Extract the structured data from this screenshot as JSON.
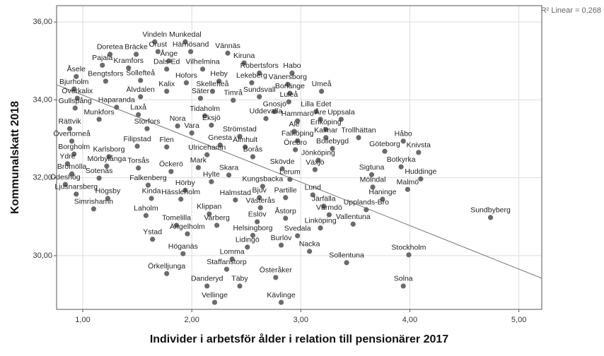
{
  "chart_data": {
    "type": "scatter",
    "xlabel": "Individer i arbetsför ålder i relation till pensionärer 2017",
    "ylabel": "Kommunalskatt 2018",
    "annotation": "R² Linear = 0,268",
    "color": "#6b6b6b",
    "grid": true,
    "xlim": [
      0.76,
      5.21
    ],
    "ylim": [
      28.62,
      36.42
    ],
    "xticks": [
      {
        "value": 1,
        "label": "1,00"
      },
      {
        "value": 2,
        "label": "2,00"
      },
      {
        "value": 3,
        "label": "3,00"
      },
      {
        "value": 4,
        "label": "4,00"
      },
      {
        "value": 5,
        "label": "5,00"
      }
    ],
    "yticks": [
      {
        "value": 30,
        "label": "30,00"
      },
      {
        "value": 32,
        "label": "32,00"
      },
      {
        "value": 34,
        "label": "34,00"
      },
      {
        "value": 36,
        "label": "36,00"
      }
    ],
    "trendline": {
      "x": [
        0.76,
        5.21
      ],
      "y": [
        34.39,
        29.42
      ]
    },
    "labels": [
      "Vindeln",
      "Munkedal",
      "Doretea",
      "Bräcke",
      "Orust",
      "Härnösand",
      "Vännäs",
      "Pajala",
      "Kramfors",
      "Ånge",
      "Kiruna",
      "Dals-Ed",
      "Vilhelmina",
      "Robertsfors",
      "Habo",
      "Åsele",
      "Bengtsfors",
      "Sollefteå",
      "Hofors",
      "Heby",
      "Lekeberg",
      "Vänersborg",
      "Bjurholm",
      "Kalix",
      "Skellefteå",
      "Sundsvall",
      "Borlänge",
      "Umeå",
      "Överkalix",
      "Älvdalen",
      "Säter",
      "Timrå",
      "Luleå",
      "Gullspång",
      "Haparanda",
      "Tidaholm",
      "Gnosjö",
      "Lilla Edet",
      "Munkfors",
      "Laxå",
      "Eksjö",
      "Uddevalla",
      "Hammarö",
      "Åre",
      "Uppsala",
      "Rättvik",
      "Storfors",
      "Nora",
      "Ale",
      "Enköping",
      "Vara",
      "Övertorneå",
      "Filipstad",
      "Flen",
      "Gnesta",
      "Strömstad",
      "Falköping",
      "Kalmar",
      "Trollhättan",
      "Håbo",
      "Älmhult",
      "Örebro",
      "Bollebygd",
      "Borgholm",
      "Karlsborg",
      "Ulricehamn",
      "Borås",
      "Göteborg",
      "Knivsta",
      "Mörbylånga",
      "Torsås",
      "Mark",
      "Jönköping",
      "Botkyrka",
      "Ydre",
      "Bromölla",
      "Öckerö",
      "Skövde",
      "Växjö",
      "Sigtuna",
      "Sotenäs",
      "Skara",
      "Lerum",
      "Huddinge",
      "Ödeshög",
      "Falkenberg",
      "Hylte",
      "Kungsbacka",
      "Ljusnarsberg",
      "Hörby",
      "Mölndal",
      "Malmö",
      "Högsby",
      "Kinda",
      "Hässleholm",
      "Halmstad",
      "Bjuv",
      "Partille",
      "Lund",
      "Haninge",
      "Simrishamn",
      "Järfälla",
      "Upplands-Bro",
      "Klippan",
      "Västerås",
      "Värmdö",
      "Åstorp",
      "Laholm",
      "Tomelilla",
      "Varberg",
      "Eslöv",
      "Vallentuna",
      "Sundbyberg",
      "Ängelholm",
      "Linköping",
      "Helsingborg",
      "Svedala",
      "Ystad",
      "Burlöv",
      "Lidingö",
      "Nacka",
      "Höganäs",
      "Lomma",
      "Sollentuna",
      "Stockholm",
      "Staffanstorp",
      "Örkelljunga",
      "Österåker",
      "Danderyd",
      "Täby",
      "Solna",
      "Vellinge",
      "Kävlinge"
    ],
    "x": [
      1.66,
      1.94,
      1.25,
      1.49,
      1.69,
      1.99,
      2.33,
      1.18,
      1.42,
      1.79,
      2.48,
      1.77,
      2.1,
      2.62,
      2.92,
      0.94,
      1.21,
      1.53,
      1.95,
      2.25,
      2.55,
      2.88,
      0.92,
      1.77,
      2.19,
      2.62,
      2.9,
      3.19,
      0.95,
      1.53,
      2.08,
      2.38,
      2.89,
      0.93,
      1.31,
      2.12,
      2.76,
      3.14,
      1.15,
      1.51,
      2.18,
      2.68,
      2.97,
      3.18,
      3.37,
      0.88,
      1.59,
      1.87,
      2.94,
      3.23,
      2.0,
      0.9,
      1.5,
      1.77,
      2.26,
      2.44,
      2.97,
      3.23,
      3.53,
      3.94,
      2.49,
      2.95,
      3.29,
      0.92,
      1.24,
      2.14,
      2.56,
      3.77,
      4.08,
      1.22,
      1.51,
      2.06,
      3.16,
      3.92,
      0.86,
      0.9,
      1.81,
      2.83,
      3.13,
      3.65,
      1.15,
      2.34,
      2.9,
      4.1,
      0.84,
      1.6,
      2.18,
      2.65,
      0.94,
      1.94,
      3.66,
      3.98,
      1.23,
      1.63,
      1.9,
      2.4,
      2.62,
      2.86,
      3.11,
      3.75,
      1.1,
      3.21,
      3.6,
      2.16,
      2.63,
      3.26,
      2.86,
      1.58,
      1.86,
      2.23,
      2.6,
      3.48,
      4.74,
      1.96,
      3.18,
      2.56,
      2.97,
      1.64,
      2.82,
      2.51,
      3.08,
      1.92,
      2.37,
      3.42,
      3.99,
      2.32,
      1.77,
      2.77,
      2.14,
      2.44,
      3.94,
      2.21,
      2.82
    ],
    "y": [
      35.49,
      35.49,
      35.17,
      35.17,
      35.24,
      35.24,
      35.2,
      34.89,
      34.82,
      35.0,
      34.95,
      34.79,
      34.79,
      34.69,
      34.69,
      34.6,
      34.48,
      34.5,
      34.44,
      34.48,
      34.44,
      34.4,
      34.28,
      34.22,
      34.22,
      34.08,
      34.17,
      34.22,
      34.04,
      34.08,
      34.04,
      33.99,
      33.95,
      33.79,
      33.81,
      33.59,
      33.7,
      33.7,
      33.5,
      33.62,
      33.35,
      33.52,
      33.46,
      33.5,
      33.5,
      33.26,
      33.26,
      33.33,
      33.19,
      33.24,
      33.15,
      32.94,
      32.81,
      32.79,
      32.84,
      33.06,
      32.95,
      33.03,
      33.03,
      32.94,
      32.79,
      32.72,
      32.75,
      32.61,
      32.54,
      32.59,
      32.54,
      32.68,
      32.65,
      32.3,
      32.25,
      32.26,
      32.45,
      32.28,
      32.36,
      32.1,
      32.16,
      32.23,
      32.21,
      32.08,
      31.99,
      32.07,
      31.96,
      31.97,
      31.83,
      31.81,
      31.9,
      31.78,
      31.58,
      31.68,
      31.76,
      31.7,
      31.47,
      31.47,
      31.45,
      31.43,
      31.49,
      31.49,
      31.56,
      31.45,
      31.2,
      31.27,
      31.18,
      31.07,
      31.23,
      31.05,
      30.96,
      31.03,
      30.78,
      30.78,
      30.87,
      30.81,
      30.98,
      30.56,
      30.71,
      30.52,
      30.51,
      30.42,
      30.27,
      30.22,
      30.11,
      30.05,
      29.91,
      29.82,
      30.02,
      29.65,
      29.54,
      29.44,
      29.22,
      29.22,
      29.22,
      28.8,
      28.8
    ]
  }
}
